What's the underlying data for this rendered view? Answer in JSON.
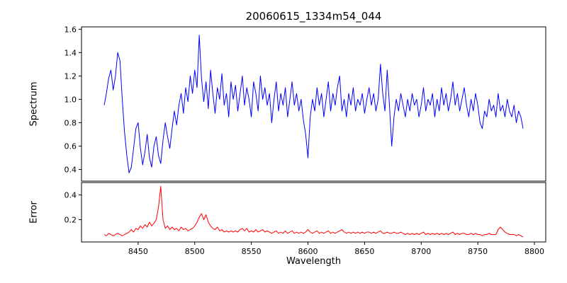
{
  "figure": {
    "background": "#ffffff"
  },
  "chart_data": {
    "type": "line",
    "title": "20060615_1334m54_044",
    "xlabel": "Wavelength",
    "x_start": 8420,
    "x_step": 2,
    "xlim": [
      8400,
      8810
    ],
    "xticks": [
      8450,
      8500,
      8550,
      8600,
      8650,
      8700,
      8750,
      8800
    ],
    "grid": false,
    "legend": "none",
    "panels": [
      {
        "name": "spectrum",
        "ylabel": "Spectrum",
        "color": "#0000ff",
        "ylim": [
          0.3,
          1.62
        ],
        "yticks": [
          0.4,
          0.6,
          0.8,
          1.0,
          1.2,
          1.4,
          1.6
        ],
        "values": [
          0.95,
          1.05,
          1.18,
          1.25,
          1.08,
          1.2,
          1.4,
          1.33,
          1.0,
          0.72,
          0.52,
          0.37,
          0.42,
          0.58,
          0.75,
          0.8,
          0.58,
          0.44,
          0.55,
          0.7,
          0.5,
          0.42,
          0.6,
          0.68,
          0.52,
          0.45,
          0.65,
          0.8,
          0.68,
          0.58,
          0.75,
          0.9,
          0.78,
          0.95,
          1.05,
          0.88,
          1.1,
          0.98,
          1.2,
          1.05,
          1.25,
          1.1,
          1.55,
          1.18,
          0.98,
          1.15,
          0.92,
          1.25,
          1.05,
          0.88,
          1.1,
          1.0,
          1.22,
          0.95,
          1.05,
          0.85,
          1.15,
          1.0,
          1.12,
          0.9,
          1.05,
          1.2,
          0.95,
          1.1,
          1.0,
          0.85,
          1.15,
          1.05,
          0.9,
          1.2,
          1.0,
          1.1,
          0.95,
          1.05,
          0.8,
          1.0,
          1.15,
          0.9,
          1.05,
          0.95,
          1.1,
          0.85,
          1.0,
          1.15,
          0.95,
          1.05,
          0.9,
          1.0,
          0.82,
          0.7,
          0.5,
          0.85,
          1.0,
          0.9,
          1.1,
          0.95,
          1.05,
          0.85,
          1.0,
          1.15,
          0.9,
          1.05,
          0.95,
          1.1,
          1.2,
          0.9,
          1.0,
          0.85,
          1.05,
          0.95,
          1.1,
          0.9,
          1.0,
          0.95,
          1.05,
          0.88,
          1.0,
          1.1,
          0.95,
          1.05,
          0.9,
          1.0,
          1.3,
          1.05,
          0.9,
          1.25,
          0.95,
          0.6,
          0.85,
          1.0,
          0.9,
          1.05,
          0.95,
          0.85,
          1.0,
          0.9,
          1.05,
          0.95,
          1.0,
          0.85,
          0.95,
          1.1,
          0.9,
          1.0,
          0.95,
          1.05,
          0.85,
          1.0,
          0.9,
          1.1,
          0.95,
          1.05,
          0.9,
          1.0,
          1.15,
          0.95,
          1.05,
          0.9,
          1.0,
          1.1,
          0.95,
          0.85,
          1.0,
          0.9,
          1.05,
          0.95,
          0.8,
          0.75,
          0.9,
          0.85,
          1.0,
          0.9,
          0.95,
          0.85,
          1.05,
          0.9,
          0.95,
          0.85,
          1.0,
          0.9,
          0.85,
          0.95,
          0.8,
          0.9,
          0.85,
          0.75
        ]
      },
      {
        "name": "error",
        "ylabel": "Error",
        "color": "#ff0000",
        "ylim": [
          0.02,
          0.5
        ],
        "yticks": [
          0.2,
          0.4
        ],
        "values": [
          0.08,
          0.07,
          0.09,
          0.08,
          0.07,
          0.08,
          0.09,
          0.08,
          0.07,
          0.08,
          0.09,
          0.1,
          0.12,
          0.1,
          0.13,
          0.12,
          0.15,
          0.13,
          0.16,
          0.14,
          0.18,
          0.15,
          0.17,
          0.2,
          0.3,
          0.47,
          0.2,
          0.13,
          0.15,
          0.12,
          0.14,
          0.12,
          0.13,
          0.11,
          0.14,
          0.12,
          0.13,
          0.11,
          0.12,
          0.13,
          0.15,
          0.18,
          0.22,
          0.25,
          0.2,
          0.24,
          0.18,
          0.15,
          0.13,
          0.12,
          0.14,
          0.11,
          0.12,
          0.1,
          0.11,
          0.1,
          0.11,
          0.1,
          0.11,
          0.1,
          0.12,
          0.13,
          0.11,
          0.13,
          0.1,
          0.11,
          0.1,
          0.12,
          0.1,
          0.11,
          0.12,
          0.1,
          0.11,
          0.1,
          0.09,
          0.1,
          0.11,
          0.09,
          0.1,
          0.09,
          0.11,
          0.09,
          0.1,
          0.11,
          0.09,
          0.1,
          0.09,
          0.1,
          0.09,
          0.1,
          0.12,
          0.1,
          0.09,
          0.1,
          0.11,
          0.09,
          0.1,
          0.09,
          0.1,
          0.11,
          0.09,
          0.1,
          0.09,
          0.1,
          0.11,
          0.12,
          0.1,
          0.09,
          0.1,
          0.09,
          0.1,
          0.09,
          0.1,
          0.09,
          0.1,
          0.09,
          0.1,
          0.1,
          0.09,
          0.1,
          0.09,
          0.1,
          0.11,
          0.09,
          0.09,
          0.1,
          0.09,
          0.09,
          0.1,
          0.09,
          0.09,
          0.1,
          0.09,
          0.08,
          0.09,
          0.08,
          0.09,
          0.08,
          0.09,
          0.08,
          0.09,
          0.1,
          0.08,
          0.09,
          0.08,
          0.09,
          0.08,
          0.09,
          0.08,
          0.09,
          0.08,
          0.09,
          0.08,
          0.09,
          0.1,
          0.08,
          0.09,
          0.08,
          0.09,
          0.09,
          0.08,
          0.08,
          0.09,
          0.08,
          0.09,
          0.08,
          0.08,
          0.07,
          0.08,
          0.08,
          0.09,
          0.08,
          0.08,
          0.08,
          0.12,
          0.14,
          0.12,
          0.1,
          0.09,
          0.08,
          0.08,
          0.08,
          0.07,
          0.08,
          0.07,
          0.06
        ]
      }
    ]
  }
}
